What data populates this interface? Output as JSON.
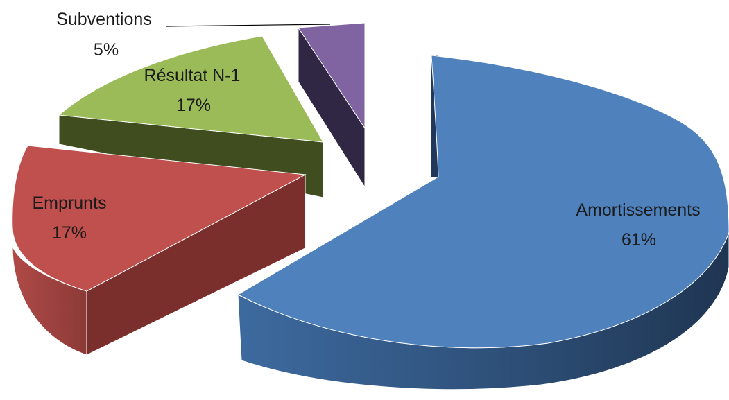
{
  "chart_data": {
    "type": "pie",
    "variant": "3d-exploded",
    "slices": [
      {
        "label": "Amortissements",
        "value_label": "61%",
        "value": 61,
        "color": "#4F81BD"
      },
      {
        "label": "Emprunts",
        "value_label": "17%",
        "value": 17,
        "color": "#C0504D"
      },
      {
        "label": "Résultat N-1",
        "value_label": "17%",
        "value": 17,
        "color": "#9BBB59"
      },
      {
        "label": "Subventions",
        "value_label": "5%",
        "value": 5,
        "color": "#8064A2"
      }
    ],
    "legend": "none"
  }
}
